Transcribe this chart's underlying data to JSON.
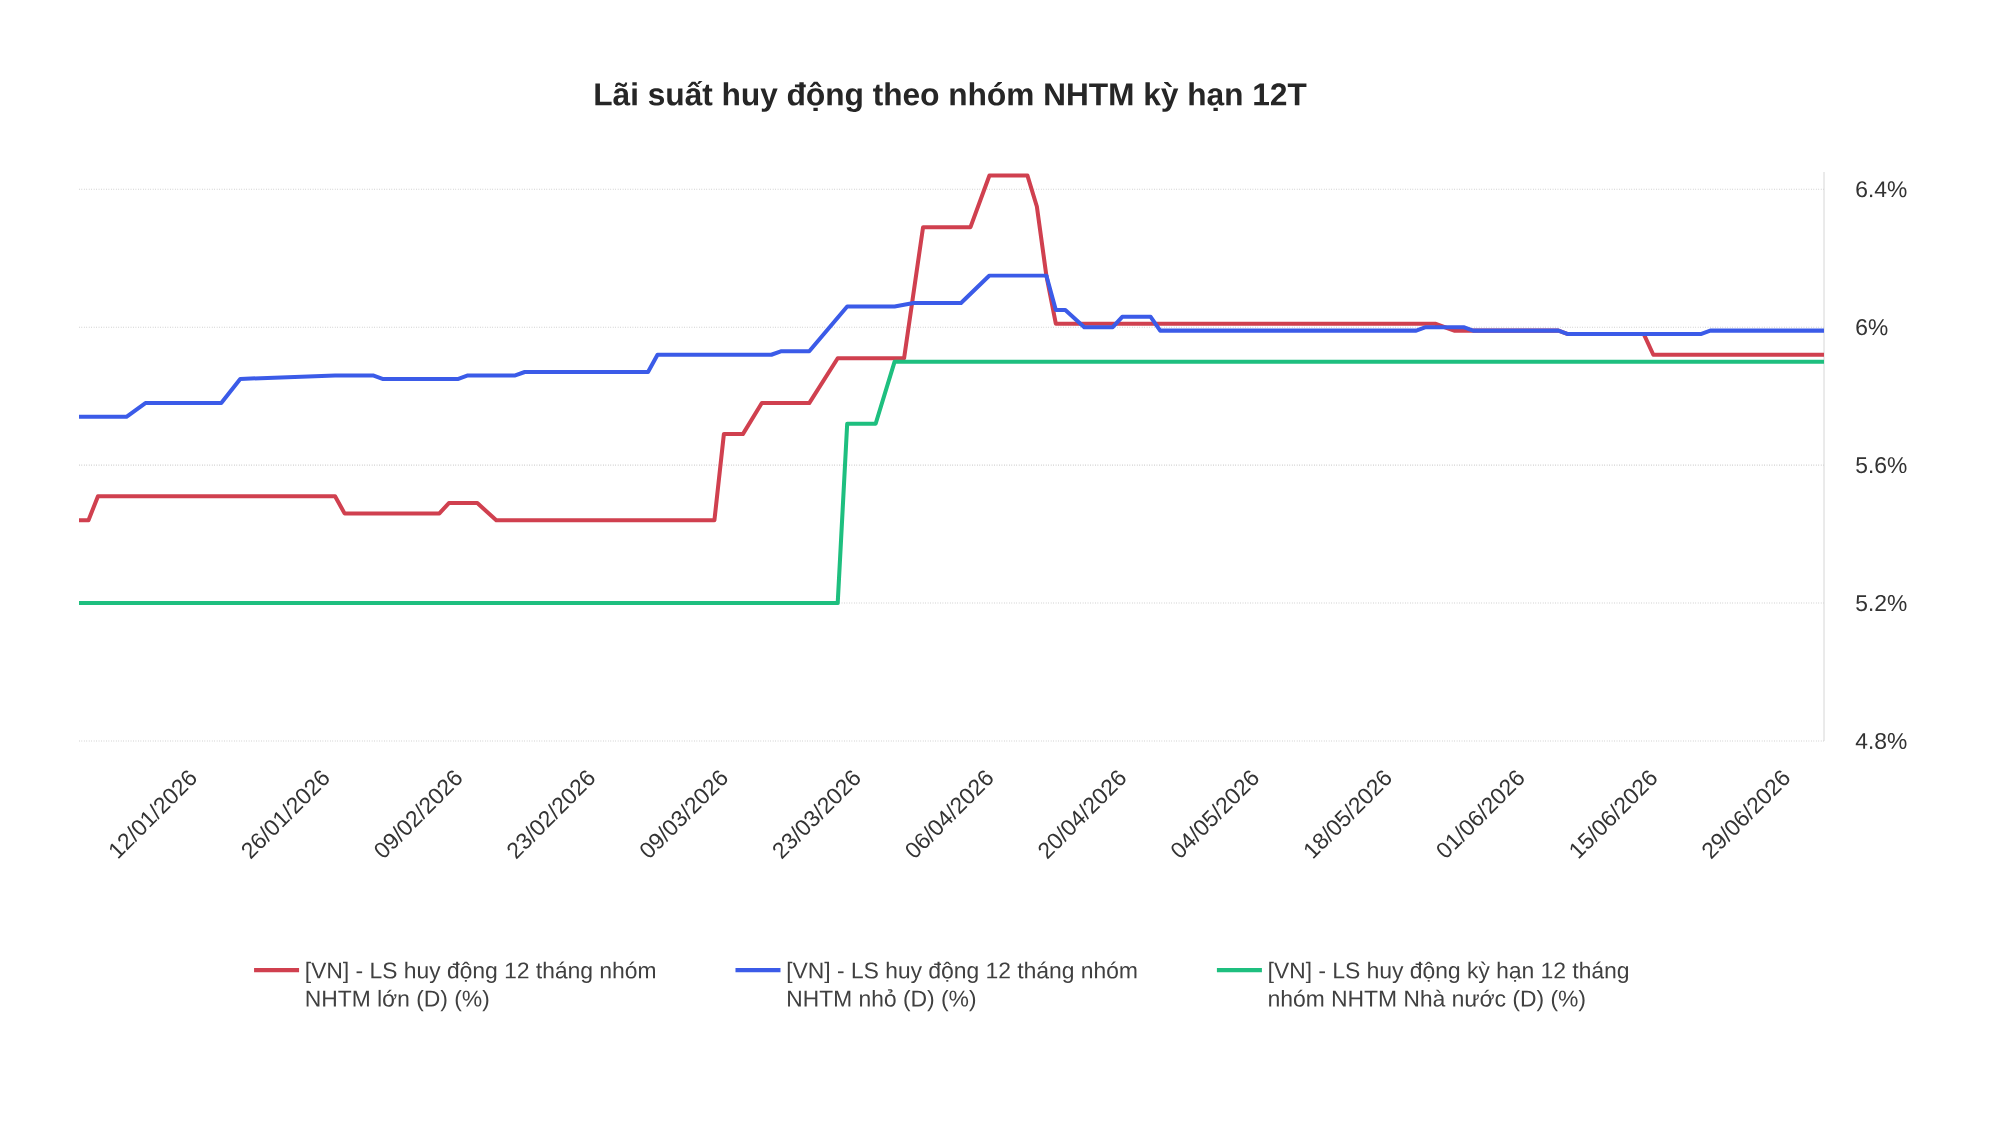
{
  "chart_data": {
    "type": "line",
    "title": "Lãi suất huy động theo nhóm NHTM kỳ hạn 12T",
    "xlim": [
      "2026-01-01",
      "2026-07-04"
    ],
    "xticks": [
      {
        "value": "2026-01-12",
        "label": "12/01/2026"
      },
      {
        "value": "2026-01-26",
        "label": "26/01/2026"
      },
      {
        "value": "2026-02-09",
        "label": "09/02/2026"
      },
      {
        "value": "2026-02-23",
        "label": "23/02/2026"
      },
      {
        "value": "2026-03-09",
        "label": "09/03/2026"
      },
      {
        "value": "2026-03-23",
        "label": "23/03/2026"
      },
      {
        "value": "2026-04-06",
        "label": "06/04/2026"
      },
      {
        "value": "2026-04-20",
        "label": "20/04/2026"
      },
      {
        "value": "2026-05-04",
        "label": "04/05/2026"
      },
      {
        "value": "2026-05-18",
        "label": "18/05/2026"
      },
      {
        "value": "2026-06-01",
        "label": "01/06/2026"
      },
      {
        "value": "2026-06-15",
        "label": "15/06/2026"
      },
      {
        "value": "2026-06-29",
        "label": "29/06/2026"
      }
    ],
    "ylim": [
      4.8,
      6.45
    ],
    "yticks": [
      {
        "value": 4.8,
        "label": "4.8%"
      },
      {
        "value": 5.2,
        "label": "5.2%"
      },
      {
        "value": 5.6,
        "label": "5.6%"
      },
      {
        "value": 6.0,
        "label": "6%"
      },
      {
        "value": 6.4,
        "label": "6.4%"
      }
    ],
    "grid": "y",
    "legend": "bottom",
    "marker": "none",
    "line_style": "solid",
    "series": [
      {
        "name": "[VN] - LS huy động 12 tháng nhóm NHTM lớn (D) (%)",
        "color": "#d0404f",
        "x": [
          "2026-01-01",
          "2026-01-02",
          "2026-01-03",
          "2026-01-28",
          "2026-01-29",
          "2026-02-08",
          "2026-02-09",
          "2026-02-12",
          "2026-02-14",
          "2026-03-09",
          "2026-03-10",
          "2026-03-12",
          "2026-03-14",
          "2026-03-19",
          "2026-03-22",
          "2026-03-29",
          "2026-03-31",
          "2026-04-05",
          "2026-04-07",
          "2026-04-11",
          "2026-04-12",
          "2026-04-13",
          "2026-04-14",
          "2026-05-24",
          "2026-05-26",
          "2026-06-06",
          "2026-06-07",
          "2026-06-15",
          "2026-06-16",
          "2026-07-04"
        ],
        "values": [
          5.44,
          5.44,
          5.51,
          5.51,
          5.46,
          5.46,
          5.49,
          5.49,
          5.44,
          5.44,
          5.69,
          5.69,
          5.78,
          5.78,
          5.91,
          5.91,
          6.29,
          6.29,
          6.44,
          6.44,
          6.35,
          6.15,
          6.01,
          6.01,
          5.99,
          5.99,
          5.98,
          5.98,
          5.92,
          5.92
        ]
      },
      {
        "name": "[VN] - LS huy động 12 tháng nhóm NHTM nhỏ (D) (%)",
        "color": "#3b5be8",
        "x": [
          "2026-01-01",
          "2026-01-06",
          "2026-01-08",
          "2026-01-16",
          "2026-01-18",
          "2026-01-28",
          "2026-02-01",
          "2026-02-02",
          "2026-02-10",
          "2026-02-11",
          "2026-02-16",
          "2026-02-17",
          "2026-03-02",
          "2026-03-03",
          "2026-03-15",
          "2026-03-16",
          "2026-03-19",
          "2026-03-23",
          "2026-03-28",
          "2026-03-30",
          "2026-04-04",
          "2026-04-07",
          "2026-04-13",
          "2026-04-14",
          "2026-04-15",
          "2026-04-17",
          "2026-04-20",
          "2026-04-21",
          "2026-04-24",
          "2026-04-25",
          "2026-05-22",
          "2026-05-23",
          "2026-05-27",
          "2026-05-28",
          "2026-06-06",
          "2026-06-07",
          "2026-06-21",
          "2026-06-22",
          "2026-07-04"
        ],
        "values": [
          5.74,
          5.74,
          5.78,
          5.78,
          5.85,
          5.86,
          5.86,
          5.85,
          5.85,
          5.86,
          5.86,
          5.87,
          5.87,
          5.92,
          5.92,
          5.93,
          5.93,
          6.06,
          6.06,
          6.07,
          6.07,
          6.15,
          6.15,
          6.05,
          6.05,
          6.0,
          6.0,
          6.03,
          6.03,
          5.99,
          5.99,
          6.0,
          6.0,
          5.99,
          5.99,
          5.98,
          5.98,
          5.99,
          5.99
        ]
      },
      {
        "name": "[VN] - LS huy động kỳ hạn 12 tháng nhóm NHTM Nhà nước (D) (%)",
        "color": "#1ebf7f",
        "x": [
          "2026-01-01",
          "2026-03-22",
          "2026-03-23",
          "2026-03-26",
          "2026-03-28",
          "2026-07-04"
        ],
        "values": [
          5.2,
          5.2,
          5.72,
          5.72,
          5.9,
          5.9
        ]
      }
    ]
  }
}
